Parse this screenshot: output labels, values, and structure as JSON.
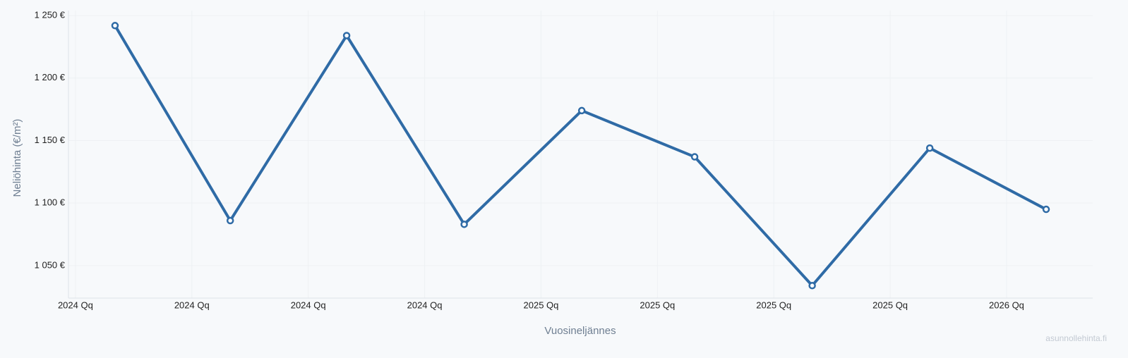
{
  "chart_data": {
    "type": "line",
    "x_label": "Vuosineljännes",
    "y_label": "Neliöhinta (€/m²)",
    "watermark": "asunnollehinta.fi",
    "x": [
      0.34,
      1.33,
      2.33,
      3.34,
      4.35,
      5.32,
      6.33,
      7.34,
      8.34
    ],
    "series": [
      {
        "color": "#2f6ba6",
        "values": [
          1242,
          1086,
          1234,
          1083,
          1174,
          1137,
          1034,
          1144,
          1095
        ]
      }
    ],
    "xlim": [
      -0.06,
      8.74
    ],
    "xticks": [
      {
        "value": 0,
        "label": "2024 Qq"
      },
      {
        "value": 1,
        "label": "2024 Qq"
      },
      {
        "value": 2,
        "label": "2024 Qq"
      },
      {
        "value": 3,
        "label": "2024 Qq"
      },
      {
        "value": 4,
        "label": "2025 Qq"
      },
      {
        "value": 5,
        "label": "2025 Qq"
      },
      {
        "value": 6,
        "label": "2025 Qq"
      },
      {
        "value": 7,
        "label": "2025 Qq"
      },
      {
        "value": 8,
        "label": "2026 Qq"
      }
    ],
    "ylim": [
      1024,
      1254
    ],
    "yticks": [
      {
        "value": 1050,
        "label": "1 050 €"
      },
      {
        "value": 1100,
        "label": "1 100 €"
      },
      {
        "value": 1150,
        "label": "1 150 €"
      },
      {
        "value": 1200,
        "label": "1 200 €"
      },
      {
        "value": 1250,
        "label": "1 250 €"
      }
    ],
    "grid": true
  }
}
